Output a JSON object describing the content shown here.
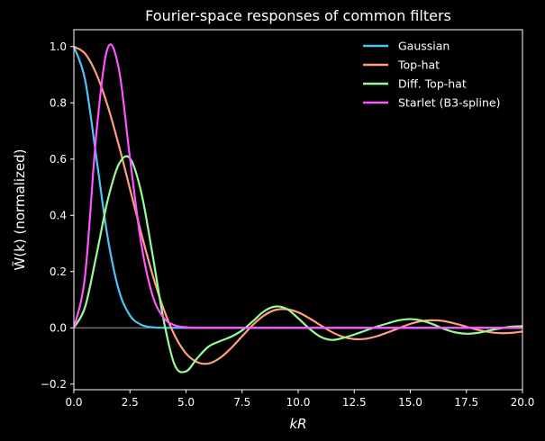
{
  "chart_data": {
    "type": "line",
    "title": "Fourier-space responses of common filters",
    "xlabel": "kR",
    "ylabel": "W̃(k) (normalized)",
    "xlim": [
      0,
      20
    ],
    "ylim": [
      -0.22,
      1.06
    ],
    "x_ticks": [
      "0.0",
      "2.5",
      "5.0",
      "7.5",
      "10.0",
      "12.5",
      "15.0",
      "17.5",
      "20.0"
    ],
    "y_ticks": [
      "−0.2",
      "0.0",
      "0.2",
      "0.4",
      "0.6",
      "0.8",
      "1.0"
    ],
    "grid": false,
    "legend_position": "top-right",
    "zero_line": true,
    "background": "#000000",
    "x": [
      0,
      0.5,
      1.0,
      1.5,
      2.0,
      2.5,
      3.0,
      3.5,
      4.0,
      4.5,
      5.0,
      5.5,
      6.0,
      6.5,
      7.0,
      7.5,
      8.0,
      8.5,
      9.0,
      9.5,
      10.0,
      10.5,
      11.0,
      11.5,
      12.0,
      12.5,
      13.0,
      13.5,
      14.0,
      14.5,
      15.0,
      15.5,
      16.0,
      16.5,
      17.0,
      17.5,
      18.0,
      18.5,
      19.0,
      19.5,
      20.0
    ],
    "series": [
      {
        "name": "Gaussian",
        "color": "#4fc3f7",
        "values": [
          1.0,
          0.882,
          0.607,
          0.325,
          0.135,
          0.044,
          0.011,
          0.002,
          0.0,
          0.0,
          0.0,
          0.0,
          0.0,
          0.0,
          0.0,
          0.0,
          0.0,
          0.0,
          0.0,
          0.0,
          0.0,
          0.0,
          0.0,
          0.0,
          0.0,
          0.0,
          0.0,
          0.0,
          0.0,
          0.0,
          0.0,
          0.0,
          0.0,
          0.0,
          0.0,
          0.0,
          0.0,
          0.0,
          0.0,
          0.0,
          0.0
        ]
      },
      {
        "name": "Top-hat",
        "color": "#ffa07a",
        "values": [
          1.0,
          0.975,
          0.903,
          0.791,
          0.65,
          0.494,
          0.337,
          0.191,
          0.067,
          -0.028,
          -0.091,
          -0.122,
          -0.127,
          -0.108,
          -0.073,
          -0.03,
          0.012,
          0.045,
          0.064,
          0.066,
          0.055,
          0.034,
          0.009,
          -0.015,
          -0.032,
          -0.04,
          -0.039,
          -0.03,
          -0.016,
          -0.001,
          0.014,
          0.024,
          0.027,
          0.024,
          0.015,
          0.004,
          -0.007,
          -0.015,
          -0.019,
          -0.018,
          -0.013
        ]
      },
      {
        "name": "Diff. Top-hat",
        "color": "#98fb98",
        "values": [
          0.0,
          0.074,
          0.256,
          0.451,
          0.581,
          0.603,
          0.483,
          0.264,
          0.028,
          -0.133,
          -0.155,
          -0.108,
          -0.067,
          -0.048,
          -0.032,
          -0.009,
          0.025,
          0.06,
          0.076,
          0.067,
          0.034,
          -0.003,
          -0.032,
          -0.043,
          -0.036,
          -0.024,
          -0.01,
          0.004,
          0.016,
          0.027,
          0.031,
          0.026,
          0.013,
          -0.004,
          -0.016,
          -0.021,
          -0.018,
          -0.01,
          -0.002,
          0.004,
          0.006
        ]
      },
      {
        "name": "Starlet (B3-spline)",
        "color": "#ff55ff",
        "values": [
          0.0,
          0.186,
          0.688,
          0.993,
          0.923,
          0.604,
          0.301,
          0.117,
          0.036,
          0.009,
          0.002,
          0.0,
          0.0,
          0.0,
          0.0,
          0.0,
          0.0,
          0.0,
          0.0,
          0.0,
          0.0,
          0.0,
          0.0,
          0.0,
          0.0,
          0.0,
          0.0,
          0.0,
          0.0,
          0.0,
          0.0,
          0.0,
          0.0,
          0.0,
          0.0,
          0.0,
          0.0,
          0.0,
          0.0,
          0.0,
          0.0
        ]
      }
    ]
  }
}
